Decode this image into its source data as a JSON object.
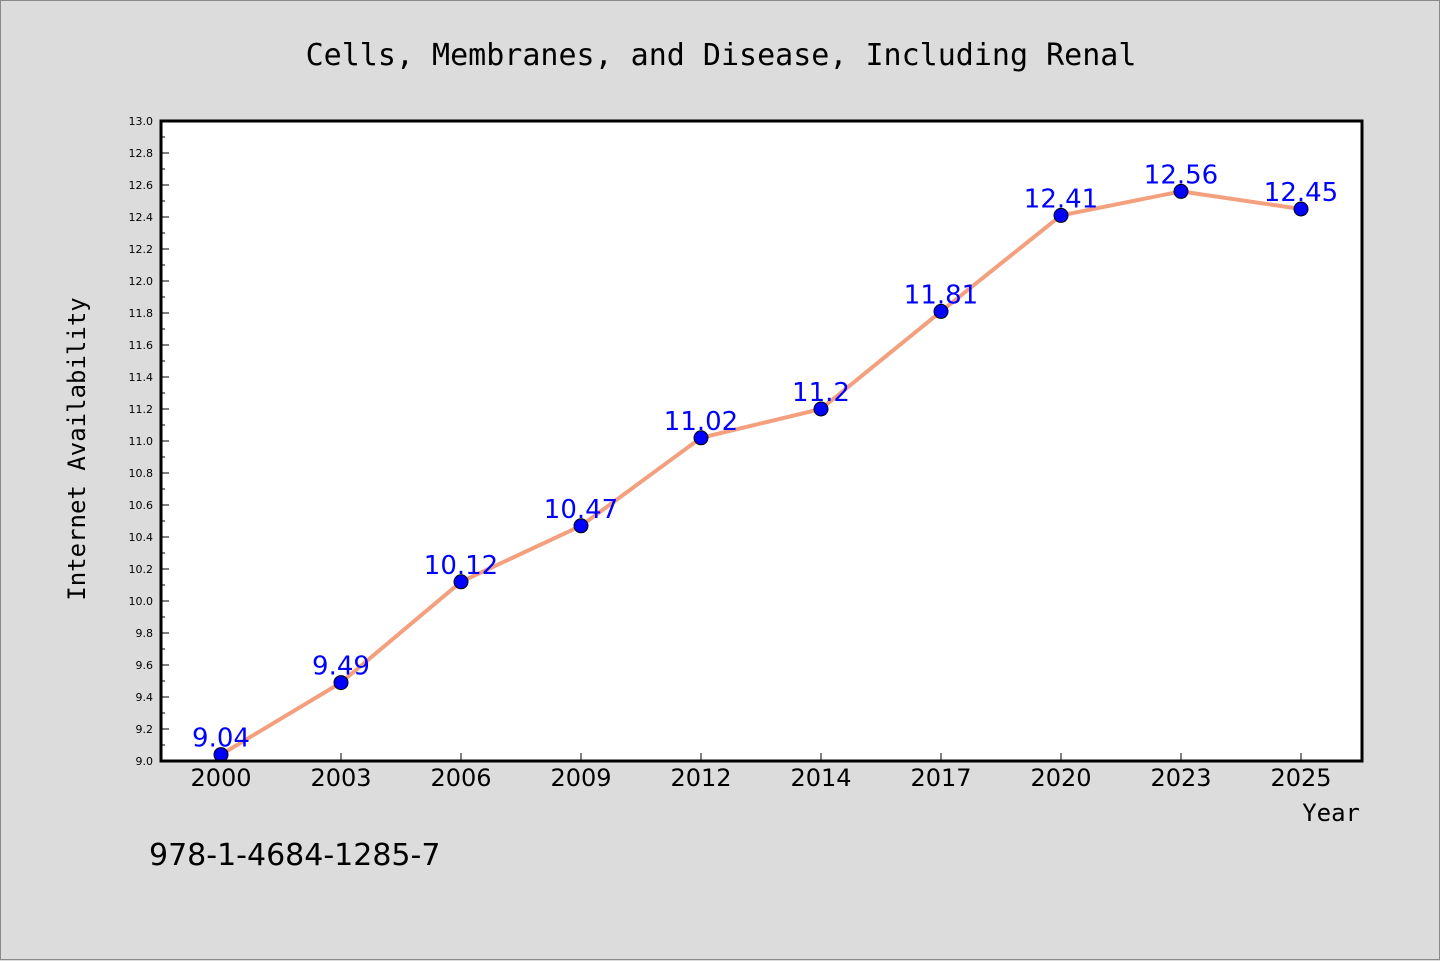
{
  "chart_data": {
    "type": "line",
    "title": "Cells, Membranes, and Disease, Including Renal",
    "xlabel": "Year",
    "ylabel": "Internet Availability",
    "categories": [
      "2000",
      "2003",
      "2006",
      "2009",
      "2012",
      "2014",
      "2017",
      "2020",
      "2023",
      "2025"
    ],
    "values": [
      9.04,
      9.49,
      10.12,
      10.47,
      11.02,
      11.2,
      11.81,
      12.41,
      12.56,
      12.45
    ],
    "data_labels": [
      "9.04",
      "9.49",
      "10.12",
      "10.47",
      "11.02",
      "11.2",
      "11.81",
      "12.41",
      "12.56",
      "12.45"
    ],
    "ylim": [
      9.0,
      13.0
    ],
    "yticks": [
      "9.0",
      "9.2",
      "9.4",
      "9.6",
      "9.8",
      "10.0",
      "10.2",
      "10.4",
      "10.6",
      "10.8",
      "11.0",
      "11.2",
      "11.4",
      "11.6",
      "11.8",
      "12.0",
      "12.2",
      "12.4",
      "12.6",
      "12.8",
      "13.0"
    ],
    "grid": false,
    "colors": {
      "line": "#f4a07e",
      "marker": "#0000ff",
      "label": "#0000ff",
      "plot_bg": "#ffffff",
      "page_bg": "#dcdcdc"
    }
  },
  "footer": {
    "isbn": "978-1-4684-1285-7"
  }
}
